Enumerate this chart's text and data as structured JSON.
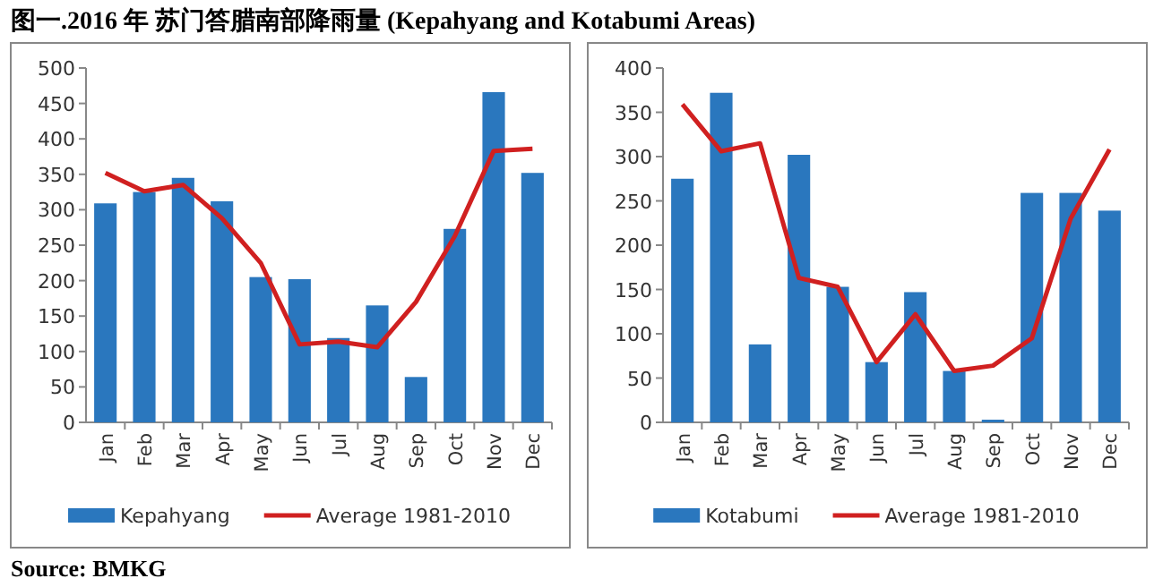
{
  "chart_data": [
    {
      "type": "bar",
      "title": "图一.2016 年 苏门答腊南部降雨量 (Kepahyang and Kotabumi Areas)",
      "annotations": [
        "Source: BMKG"
      ],
      "categories": [
        "Jan",
        "Feb",
        "Mar",
        "Apr",
        "May",
        "Jun",
        "Jul",
        "Aug",
        "Sep",
        "Oct",
        "Nov",
        "Dec"
      ],
      "ylim": [
        0,
        500
      ],
      "yticks": [
        0,
        50,
        100,
        150,
        200,
        250,
        300,
        350,
        400,
        450,
        500
      ],
      "legend": "bottom",
      "series": [
        {
          "name": "Kepahyang",
          "color": "#2a77be",
          "values": [
            309,
            325,
            345,
            312,
            205,
            202,
            119,
            165,
            64,
            273,
            466,
            352
          ]
        },
        {
          "name": "Average 1981-2010",
          "type": "line",
          "color": "#d02020",
          "values": [
            352,
            326,
            335,
            288,
            225,
            110,
            114,
            106,
            170,
            263,
            383,
            386
          ]
        }
      ]
    },
    {
      "type": "bar",
      "categories": [
        "Jan",
        "Feb",
        "Mar",
        "Apr",
        "May",
        "Jun",
        "Jul",
        "Aug",
        "Sep",
        "Oct",
        "Nov",
        "Dec"
      ],
      "ylim": [
        0,
        400
      ],
      "yticks": [
        0,
        50,
        100,
        150,
        200,
        250,
        300,
        350,
        400
      ],
      "legend": "bottom",
      "series": [
        {
          "name": "Kotabumi",
          "color": "#2a77be",
          "values": [
            275,
            372,
            88,
            302,
            153,
            68,
            147,
            58,
            3,
            259,
            259,
            239
          ]
        },
        {
          "name": "Average 1981-2010",
          "type": "line",
          "color": "#d02020",
          "values": [
            359,
            306,
            315,
            163,
            153,
            68,
            122,
            58,
            64,
            95,
            230,
            308
          ]
        }
      ]
    }
  ]
}
